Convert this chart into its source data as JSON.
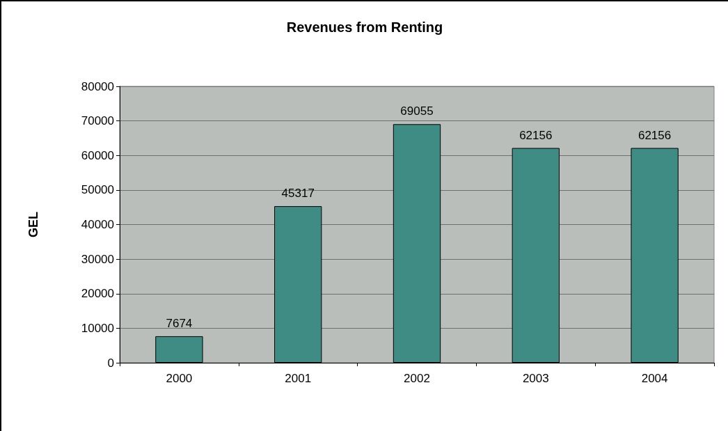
{
  "chart_data": {
    "type": "bar",
    "title": "Revenues from Renting",
    "ylabel": "GEL",
    "categories": [
      "2000",
      "2001",
      "2002",
      "2003",
      "2004"
    ],
    "values": [
      7674,
      45317,
      69055,
      62156,
      62156
    ],
    "color": "#3f8c84",
    "ylim": [
      0,
      80000
    ],
    "yticks": [
      0,
      10000,
      20000,
      30000,
      40000,
      50000,
      60000,
      70000,
      80000
    ],
    "grid": "y",
    "data_labels": true
  }
}
